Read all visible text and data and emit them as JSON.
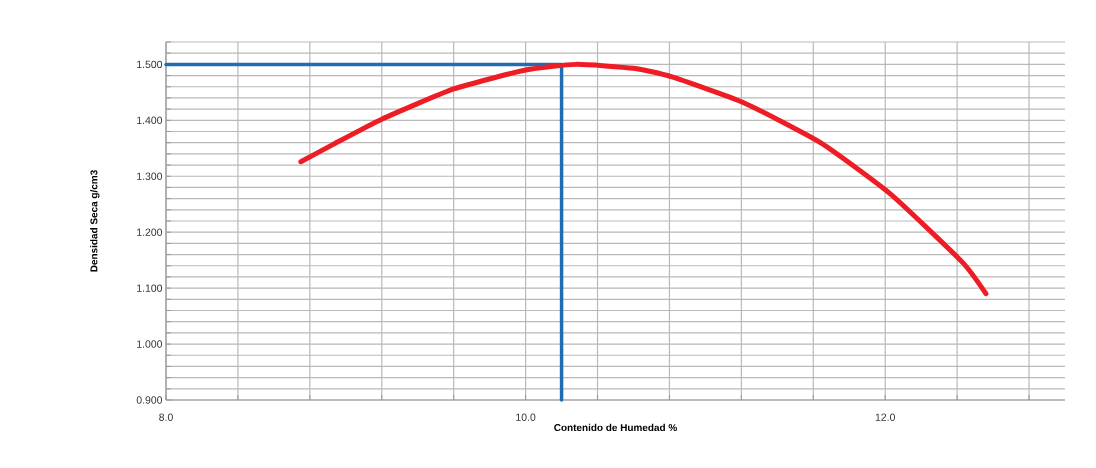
{
  "chart_data": {
    "type": "line",
    "xlabel": "Contenido de Humedad %",
    "ylabel": "Densidad Seca g/cm3",
    "xlim": [
      8.0,
      13.0
    ],
    "ylim": [
      0.9,
      1.54
    ],
    "xticks": [
      {
        "value": 8.0,
        "label": "8.0"
      },
      {
        "value": 8.4,
        "label": null
      },
      {
        "value": 8.8,
        "label": null
      },
      {
        "value": 9.2,
        "label": null
      },
      {
        "value": 9.6,
        "label": null
      },
      {
        "value": 10.0,
        "label": "10.0"
      },
      {
        "value": 10.4,
        "label": null
      },
      {
        "value": 10.8,
        "label": null
      },
      {
        "value": 11.2,
        "label": null
      },
      {
        "value": 11.6,
        "label": null
      },
      {
        "value": 12.0,
        "label": "12.0"
      },
      {
        "value": 12.4,
        "label": null
      },
      {
        "value": 12.8,
        "label": null
      }
    ],
    "yticks": [
      {
        "value": 0.9,
        "label": "0.900"
      },
      {
        "value": 0.92,
        "label": null
      },
      {
        "value": 0.94,
        "label": null
      },
      {
        "value": 0.96,
        "label": null
      },
      {
        "value": 0.98,
        "label": null
      },
      {
        "value": 1.0,
        "label": "1.000"
      },
      {
        "value": 1.02,
        "label": null
      },
      {
        "value": 1.04,
        "label": null
      },
      {
        "value": 1.06,
        "label": null
      },
      {
        "value": 1.08,
        "label": null
      },
      {
        "value": 1.1,
        "label": "1.100"
      },
      {
        "value": 1.12,
        "label": null
      },
      {
        "value": 1.14,
        "label": null
      },
      {
        "value": 1.16,
        "label": null
      },
      {
        "value": 1.18,
        "label": null
      },
      {
        "value": 1.2,
        "label": "1.200"
      },
      {
        "value": 1.22,
        "label": null
      },
      {
        "value": 1.24,
        "label": null
      },
      {
        "value": 1.26,
        "label": null
      },
      {
        "value": 1.28,
        "label": null
      },
      {
        "value": 1.3,
        "label": "1.300"
      },
      {
        "value": 1.32,
        "label": null
      },
      {
        "value": 1.34,
        "label": null
      },
      {
        "value": 1.36,
        "label": null
      },
      {
        "value": 1.38,
        "label": null
      },
      {
        "value": 1.4,
        "label": "1.400"
      },
      {
        "value": 1.42,
        "label": null
      },
      {
        "value": 1.44,
        "label": null
      },
      {
        "value": 1.46,
        "label": null
      },
      {
        "value": 1.48,
        "label": null
      },
      {
        "value": 1.5,
        "label": "1.500"
      },
      {
        "value": 1.52,
        "label": null
      },
      {
        "value": 1.54,
        "label": null
      }
    ],
    "grid": true,
    "series": [
      {
        "color": "#1f6eb5",
        "x": [
          8.0,
          10.2,
          10.2
        ],
        "values": [
          1.5,
          1.5,
          0.9
        ]
      },
      {
        "color": "#ee1c25",
        "x": [
          8.75,
          8.93,
          9.2,
          9.6,
          10.0,
          10.28,
          10.6,
          10.81,
          11.21,
          11.64,
          12.03,
          12.43,
          12.56
        ],
        "values": [
          1.326,
          1.357,
          1.402,
          1.456,
          1.49,
          1.5,
          1.493,
          1.478,
          1.432,
          1.36,
          1.268,
          1.146,
          1.09
        ]
      }
    ]
  }
}
